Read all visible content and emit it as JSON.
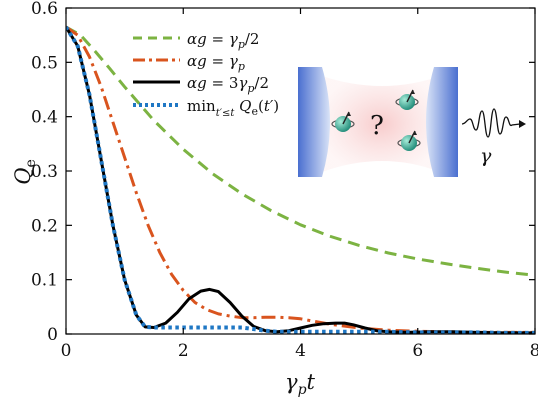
{
  "chart_data": {
    "type": "line",
    "xlabel": "γ_p t",
    "ylabel": "Q_e",
    "xlim": [
      0,
      8
    ],
    "ylim": [
      0,
      0.6
    ],
    "xticks": [
      "0",
      "2",
      "4",
      "6",
      "8"
    ],
    "yticks": [
      "0",
      "0.1",
      "0.2",
      "0.3",
      "0.4",
      "0.5",
      "0.6"
    ],
    "grid": false,
    "legend_position": "top-center",
    "series": [
      {
        "name": "αg = γp/2",
        "color": "#7cb342",
        "style": "dashed",
        "x": [
          0,
          0.25,
          0.5,
          0.75,
          1,
          1.5,
          2,
          2.5,
          3,
          3.5,
          4,
          4.5,
          5,
          5.5,
          6,
          6.5,
          7,
          7.5,
          8
        ],
        "y": [
          0.565,
          0.55,
          0.52,
          0.488,
          0.455,
          0.393,
          0.34,
          0.295,
          0.258,
          0.227,
          0.201,
          0.18,
          0.163,
          0.149,
          0.138,
          0.129,
          0.121,
          0.114,
          0.108
        ]
      },
      {
        "name": "αg = γp",
        "color": "#d9541e",
        "style": "dash-dot",
        "x": [
          0,
          0.2,
          0.4,
          0.6,
          0.8,
          1,
          1.2,
          1.4,
          1.6,
          1.8,
          2,
          2.2,
          2.4,
          2.6,
          2.8,
          3,
          3.2,
          3.4,
          3.6,
          3.8,
          4,
          4.2,
          4.5,
          5,
          5.5,
          6,
          6.5,
          7,
          7.5,
          8
        ],
        "y": [
          0.565,
          0.55,
          0.51,
          0.455,
          0.39,
          0.325,
          0.26,
          0.2,
          0.15,
          0.11,
          0.08,
          0.058,
          0.045,
          0.037,
          0.033,
          0.03,
          0.03,
          0.031,
          0.031,
          0.03,
          0.028,
          0.024,
          0.018,
          0.011,
          0.007,
          0.005,
          0.004,
          0.003,
          0.003,
          0.003
        ]
      },
      {
        "name": "αg = 3γp/2",
        "color": "#000000",
        "style": "solid",
        "x": [
          0,
          0.2,
          0.4,
          0.6,
          0.8,
          1,
          1.2,
          1.35,
          1.5,
          1.7,
          1.9,
          2.1,
          2.3,
          2.45,
          2.6,
          2.8,
          3,
          3.2,
          3.4,
          3.6,
          3.8,
          4,
          4.2,
          4.4,
          4.6,
          4.75,
          4.9,
          5.1,
          5.3,
          5.5,
          5.8,
          6.2,
          6.6,
          7,
          7.5,
          8
        ],
        "y": [
          0.565,
          0.53,
          0.44,
          0.32,
          0.2,
          0.1,
          0.035,
          0.013,
          0.012,
          0.02,
          0.04,
          0.065,
          0.079,
          0.082,
          0.078,
          0.058,
          0.033,
          0.014,
          0.006,
          0.004,
          0.006,
          0.011,
          0.016,
          0.019,
          0.02,
          0.02,
          0.017,
          0.011,
          0.006,
          0.004,
          0.003,
          0.004,
          0.004,
          0.003,
          0.002,
          0.002
        ]
      },
      {
        "name": "min_{t'≤t} Qe(t')",
        "color": "#1f77c4",
        "style": "dotted",
        "x": [
          0,
          0.2,
          0.4,
          0.6,
          0.8,
          1,
          1.2,
          1.35,
          1.5,
          2,
          3,
          3.4,
          3.6,
          4,
          5,
          5.5,
          6,
          7,
          7.5,
          8
        ],
        "y": [
          0.565,
          0.53,
          0.44,
          0.32,
          0.2,
          0.1,
          0.035,
          0.013,
          0.012,
          0.012,
          0.012,
          0.006,
          0.004,
          0.004,
          0.004,
          0.004,
          0.003,
          0.003,
          0.002,
          0.002
        ]
      }
    ]
  },
  "legend": {
    "items": [
      {
        "lhs": "αg",
        "rhs": "γ",
        "sub": "p",
        "suffix": "/2"
      },
      {
        "lhs": "αg",
        "rhs": "γ",
        "sub": "p",
        "suffix": ""
      },
      {
        "lhs": "αg",
        "rhs": "3γ",
        "sub": "p",
        "suffix": "/2"
      },
      {
        "lhs": "min",
        "rhs": "Q",
        "sub": "t′≤t",
        "suffix": "(t′)"
      }
    ]
  },
  "inset": {
    "question_mark": "?",
    "emission_label": "γ"
  }
}
